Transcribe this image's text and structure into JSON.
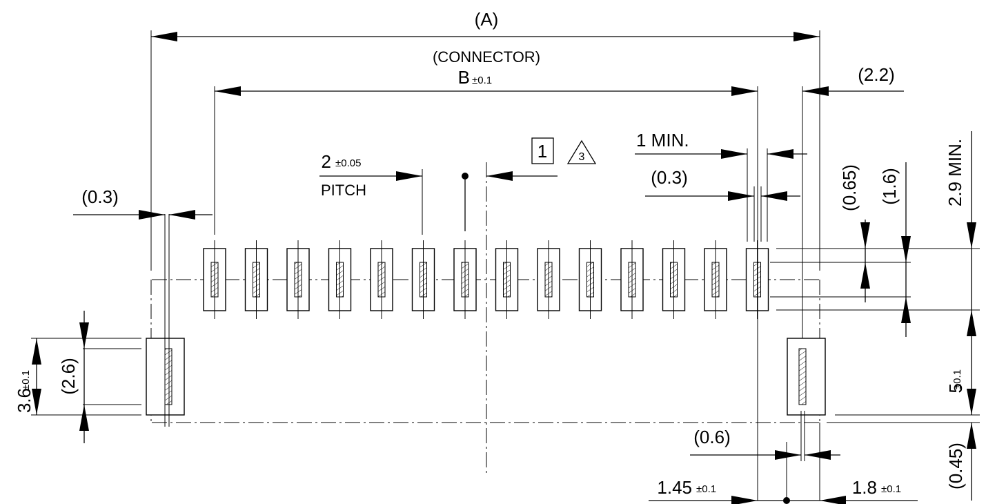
{
  "diagram": {
    "labels": {
      "overall_length": "(A)",
      "connector_caption": "(CONNECTOR)",
      "connector_dim": "B",
      "connector_tol": "±0.1",
      "right_overhang": "(2.2)",
      "pitch_value": "2",
      "pitch_tol": "±0.05",
      "pitch_caption": "PITCH",
      "note_box": "1",
      "note_triangle": "3",
      "min_gap": "1 MIN.",
      "pad_width": "(0.3)",
      "left_offset": "(0.3)",
      "pad_len_ref": "(0.65)",
      "pad_row_height": "(1.6)",
      "min_depth": "2.9 MIN.",
      "mount_height": "3.6",
      "mount_tol": "±0.1",
      "mount_inner": "(2.6)",
      "row_spacing": "5",
      "row_spacing_tol": "±0.1",
      "mount_slot_width": "(0.6)",
      "bottom_ref": "(0.45)",
      "dim_left": "1.45",
      "dim_left_tol": "±0.1",
      "dim_right": "1.8",
      "dim_right_tol": "±0.1"
    },
    "signal_pad_count": 14
  }
}
